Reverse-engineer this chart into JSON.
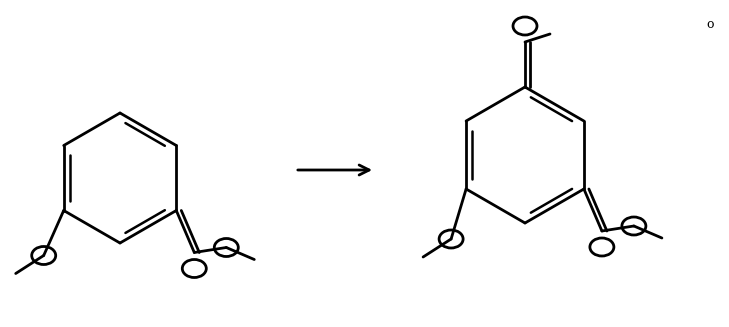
{
  "background_color": "#ffffff",
  "figure_width": 7.29,
  "figure_height": 3.27,
  "dpi": 100,
  "line_width": 2.0,
  "line_color": "#000000"
}
